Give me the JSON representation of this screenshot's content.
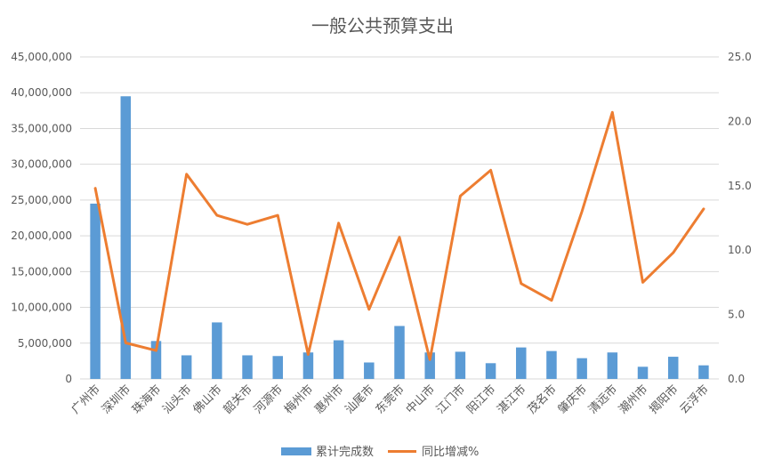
{
  "chart_data": {
    "type": "bar",
    "title": "一般公共预算支出",
    "categories": [
      "广州市",
      "深圳市",
      "珠海市",
      "汕头市",
      "佛山市",
      "韶关市",
      "河源市",
      "梅州市",
      "惠州市",
      "汕尾市",
      "东莞市",
      "中山市",
      "江门市",
      "阳江市",
      "湛江市",
      "茂名市",
      "肇庆市",
      "清远市",
      "潮州市",
      "揭阳市",
      "云浮市"
    ],
    "series": [
      {
        "name": "累计完成数",
        "type": "bar",
        "axis": "left",
        "color": "#5b9bd5",
        "values": [
          24500000,
          39500000,
          5300000,
          3300000,
          7900000,
          3300000,
          3200000,
          3700000,
          5400000,
          2300000,
          7400000,
          3700000,
          3800000,
          2200000,
          4400000,
          3900000,
          2900000,
          3700000,
          1700000,
          3100000,
          1900000
        ]
      },
      {
        "name": "同比增减%",
        "type": "line",
        "axis": "right",
        "color": "#ed7d31",
        "values": [
          14.8,
          2.8,
          2.2,
          15.9,
          12.7,
          12.0,
          12.7,
          1.9,
          12.1,
          5.4,
          11.0,
          1.5,
          14.2,
          16.2,
          7.4,
          6.1,
          13.0,
          20.7,
          7.5,
          9.8,
          13.2
        ]
      }
    ],
    "ylim_left": [
      0,
      45000000
    ],
    "yticks_left": [
      "0",
      "5,000,000",
      "10,000,000",
      "15,000,000",
      "20,000,000",
      "25,000,000",
      "30,000,000",
      "35,000,000",
      "40,000,000",
      "45,000,000"
    ],
    "ylim_right": [
      0,
      25
    ],
    "yticks_right": [
      "0.0",
      "5.0",
      "10.0",
      "15.0",
      "20.0",
      "25.0"
    ],
    "grid": true,
    "legend_position": "bottom"
  }
}
